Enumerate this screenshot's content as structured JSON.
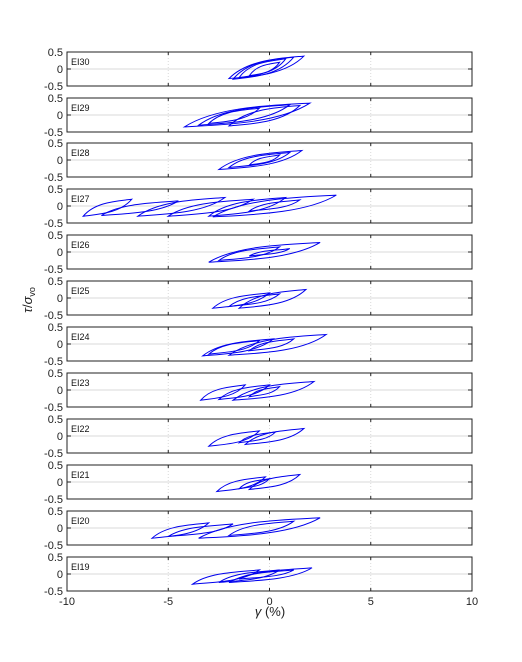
{
  "chart_data": [
    {
      "panel": "EI30",
      "type": "line",
      "ylim": [
        -0.5,
        0.5
      ],
      "yticks": [
        "0.5",
        "0",
        "-0.5"
      ],
      "loops": [
        {
          "x1": -2.0,
          "x2": 1.7,
          "y1": -0.28,
          "y2": 0.38
        },
        {
          "x1": -1.8,
          "x2": 1.2,
          "y1": -0.3,
          "y2": 0.35
        },
        {
          "x1": -1.5,
          "x2": 0.8,
          "y1": -0.25,
          "y2": 0.3
        },
        {
          "x1": -1.0,
          "x2": 0.5,
          "y1": -0.2,
          "y2": 0.2
        }
      ]
    },
    {
      "panel": "EI29",
      "type": "line",
      "ylim": [
        -0.5,
        0.5
      ],
      "yticks": [
        "0.5",
        "0",
        "-0.5"
      ],
      "loops": [
        {
          "x1": -4.2,
          "x2": 2.0,
          "y1": -0.35,
          "y2": 0.35
        },
        {
          "x1": -3.5,
          "x2": 1.0,
          "y1": -0.3,
          "y2": 0.3
        },
        {
          "x1": -2.0,
          "x2": 1.5,
          "y1": -0.32,
          "y2": 0.28
        },
        {
          "x1": -3.0,
          "x2": -0.5,
          "y1": -0.25,
          "y2": 0.2
        }
      ]
    },
    {
      "panel": "EI28",
      "type": "line",
      "ylim": [
        -0.5,
        0.5
      ],
      "yticks": [
        "0.5",
        "0",
        "-0.5"
      ],
      "loops": [
        {
          "x1": -2.5,
          "x2": 1.6,
          "y1": -0.28,
          "y2": 0.28
        },
        {
          "x1": -2.0,
          "x2": 1.0,
          "y1": -0.22,
          "y2": 0.22
        },
        {
          "x1": -1.0,
          "x2": 0.5,
          "y1": -0.15,
          "y2": 0.15
        }
      ]
    },
    {
      "panel": "EI27",
      "type": "line",
      "ylim": [
        -0.5,
        0.5
      ],
      "yticks": [
        "0.5",
        "0",
        "-0.5"
      ],
      "loops": [
        {
          "x1": -9.2,
          "x2": -6.8,
          "y1": -0.3,
          "y2": 0.2
        },
        {
          "x1": -8.3,
          "x2": -4.5,
          "y1": -0.28,
          "y2": 0.15
        },
        {
          "x1": -6.5,
          "x2": -2.2,
          "y1": -0.3,
          "y2": 0.25
        },
        {
          "x1": -5.0,
          "x2": -0.8,
          "y1": -0.3,
          "y2": 0.2
        },
        {
          "x1": -3.0,
          "x2": 0.8,
          "y1": -0.3,
          "y2": 0.25
        },
        {
          "x1": -1.0,
          "x2": 1.5,
          "y1": -0.15,
          "y2": 0.18
        },
        {
          "x1": -2.8,
          "x2": 3.3,
          "y1": -0.32,
          "y2": 0.32
        }
      ]
    },
    {
      "panel": "EI26",
      "type": "line",
      "ylim": [
        -0.5,
        0.5
      ],
      "yticks": [
        "0.5",
        "0",
        "-0.5"
      ],
      "loops": [
        {
          "x1": -3.0,
          "x2": 2.5,
          "y1": -0.3,
          "y2": 0.28
        },
        {
          "x1": -2.5,
          "x2": 0.5,
          "y1": -0.25,
          "y2": 0.15
        },
        {
          "x1": -1.0,
          "x2": 1.0,
          "y1": -0.12,
          "y2": 0.1
        }
      ]
    },
    {
      "panel": "EI25",
      "type": "line",
      "ylim": [
        -0.5,
        0.5
      ],
      "yticks": [
        "0.5",
        "0",
        "-0.5"
      ],
      "loops": [
        {
          "x1": -2.8,
          "x2": 0.0,
          "y1": -0.3,
          "y2": 0.15
        },
        {
          "x1": -2.0,
          "x2": 0.5,
          "y1": -0.25,
          "y2": 0.12
        },
        {
          "x1": -1.5,
          "x2": 1.8,
          "y1": -0.3,
          "y2": 0.25
        }
      ]
    },
    {
      "panel": "EI24",
      "type": "line",
      "ylim": [
        -0.5,
        0.5
      ],
      "yticks": [
        "0.5",
        "0",
        "-0.5"
      ],
      "loops": [
        {
          "x1": -3.3,
          "x2": 0.2,
          "y1": -0.35,
          "y2": 0.15
        },
        {
          "x1": -3.0,
          "x2": -0.5,
          "y1": -0.3,
          "y2": 0.1
        },
        {
          "x1": -2.0,
          "x2": 2.8,
          "y1": -0.33,
          "y2": 0.28
        },
        {
          "x1": -1.0,
          "x2": 1.2,
          "y1": -0.2,
          "y2": 0.15
        }
      ]
    },
    {
      "panel": "EI23",
      "type": "line",
      "ylim": [
        -0.5,
        0.5
      ],
      "yticks": [
        "0.5",
        "0",
        "-0.5"
      ],
      "loops": [
        {
          "x1": -3.4,
          "x2": -1.2,
          "y1": -0.3,
          "y2": 0.15
        },
        {
          "x1": -2.5,
          "x2": 0.0,
          "y1": -0.28,
          "y2": 0.15
        },
        {
          "x1": -1.0,
          "x2": 0.5,
          "y1": -0.2,
          "y2": 0.1
        },
        {
          "x1": -1.8,
          "x2": 2.2,
          "y1": -0.3,
          "y2": 0.25
        }
      ]
    },
    {
      "panel": "EI22",
      "type": "line",
      "ylim": [
        -0.5,
        0.5
      ],
      "yticks": [
        "0.5",
        "0",
        "-0.5"
      ],
      "loops": [
        {
          "x1": -3.0,
          "x2": -0.5,
          "y1": -0.3,
          "y2": 0.15
        },
        {
          "x1": -1.5,
          "x2": 0.3,
          "y1": -0.2,
          "y2": 0.12
        },
        {
          "x1": -1.2,
          "x2": 1.7,
          "y1": -0.25,
          "y2": 0.22
        }
      ]
    },
    {
      "panel": "EI21",
      "type": "line",
      "ylim": [
        -0.5,
        0.5
      ],
      "yticks": [
        "0.5",
        "0",
        "-0.5"
      ],
      "loops": [
        {
          "x1": -2.6,
          "x2": -0.2,
          "y1": -0.28,
          "y2": 0.15
        },
        {
          "x1": -1.5,
          "x2": 0.0,
          "y1": -0.2,
          "y2": 0.1
        },
        {
          "x1": -1.0,
          "x2": 1.5,
          "y1": -0.22,
          "y2": 0.22
        }
      ]
    },
    {
      "panel": "EI20",
      "type": "line",
      "ylim": [
        -0.5,
        0.5
      ],
      "yticks": [
        "0.5",
        "0",
        "-0.5"
      ],
      "loops": [
        {
          "x1": -5.8,
          "x2": -3.0,
          "y1": -0.3,
          "y2": 0.15
        },
        {
          "x1": -5.0,
          "x2": -1.8,
          "y1": -0.25,
          "y2": 0.12
        },
        {
          "x1": -2.0,
          "x2": 1.2,
          "y1": -0.22,
          "y2": 0.2
        },
        {
          "x1": -3.5,
          "x2": 2.5,
          "y1": -0.3,
          "y2": 0.3
        }
      ]
    },
    {
      "panel": "EI19",
      "type": "line",
      "ylim": [
        -0.5,
        0.5
      ],
      "yticks": [
        "0.5",
        "0",
        "-0.5"
      ],
      "loops": [
        {
          "x1": -3.8,
          "x2": -0.5,
          "y1": -0.3,
          "y2": 0.12
        },
        {
          "x1": -2.5,
          "x2": 0.5,
          "y1": -0.25,
          "y2": 0.12
        },
        {
          "x1": -1.5,
          "x2": 1.2,
          "y1": -0.15,
          "y2": 0.12
        },
        {
          "x1": -2.0,
          "x2": 2.1,
          "y1": -0.25,
          "y2": 0.18
        }
      ]
    }
  ],
  "axes": {
    "xlim": [
      -10,
      10
    ],
    "xticks": [
      "-10",
      "-5",
      "0",
      "5",
      "10"
    ],
    "xlabel_symbol": "γ",
    "xlabel_unit": " (%)",
    "ylabel_tau": "τ",
    "ylabel_slash": "/",
    "ylabel_sigma": "σ",
    "ylabel_sub": "vo"
  },
  "colors": {
    "line": "#0000ee",
    "axis": "#222222",
    "grid": "#d9d9d9"
  }
}
